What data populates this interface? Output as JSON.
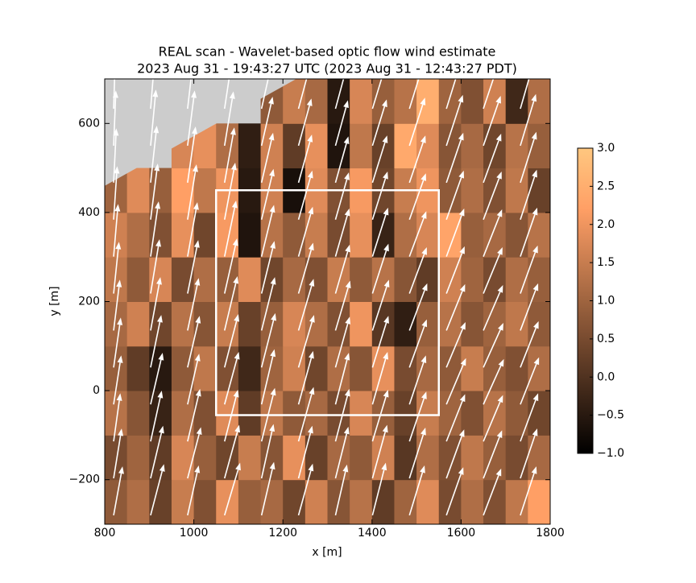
{
  "chart_data": {
    "type": "heatmap",
    "title": "REAL scan - Wavelet-based optic flow wind estimate",
    "subtitle": "2023 Aug 31 - 19:43:27 UTC (2023 Aug 31 - 12:43:27 PDT)",
    "xlabel": "x [m]",
    "ylabel": "y [m]",
    "xlim": [
      800,
      1800
    ],
    "ylim": [
      -300,
      700
    ],
    "xticks": [
      800,
      1000,
      1200,
      1400,
      1600,
      1800
    ],
    "yticks": [
      {
        "value": -200,
        "label": "−200"
      },
      0,
      200,
      400,
      600
    ],
    "clim": [
      -1,
      3
    ],
    "cticks": [
      {
        "value": -1,
        "label": "−1.0"
      },
      {
        "value": -0.5,
        "label": "−0.5"
      },
      {
        "value": 0,
        "label": "0.0"
      },
      0.5,
      {
        "value": 1,
        "label": "1.0"
      },
      1.5,
      {
        "value": 2,
        "label": "2.0"
      },
      2.5,
      {
        "value": 3,
        "label": "3.0"
      }
    ],
    "colormap": "copper",
    "mask_color": "#cccccc",
    "mask_edge": {
      "x": [
        800,
        1230
      ],
      "y": [
        460,
        700
      ]
    },
    "xbins": [
      800,
      850,
      900,
      950,
      1000,
      1050,
      1100,
      1150,
      1200,
      1250,
      1300,
      1350,
      1400,
      1450,
      1500,
      1550,
      1600,
      1650,
      1700,
      1750,
      1800
    ],
    "ybins": [
      -300,
      -200,
      -100,
      0,
      100,
      200,
      300,
      400,
      500,
      600,
      700
    ],
    "z": [
      [
        0.8,
        1.2,
        0.3,
        1.5,
        0.6,
        1.9,
        0.9,
        1.1,
        0.4,
        1.6,
        0.7,
        1.3,
        0.2,
        1.0,
        1.8,
        0.5,
        1.2,
        0.6,
        1.4,
        2.2
      ],
      [
        0.5,
        1.0,
        0.2,
        1.7,
        0.9,
        0.4,
        1.5,
        0.7,
        1.9,
        0.3,
        1.1,
        0.8,
        1.6,
        0.1,
        1.2,
        0.6,
        1.4,
        0.9,
        0.5,
        1.1
      ],
      [
        1.3,
        0.7,
        -0.3,
        1.2,
        0.6,
        1.8,
        0.2,
        1.4,
        0.8,
        1.1,
        0.5,
        1.7,
        0.9,
        0.3,
        1.5,
        1.0,
        0.6,
        1.3,
        0.8,
        0.4
      ],
      [
        0.9,
        0.2,
        -0.5,
        0.8,
        1.4,
        0.6,
        -0.2,
        1.0,
        1.6,
        0.4,
        1.2,
        0.7,
        1.9,
        0.5,
        1.1,
        0.8,
        1.5,
        0.9,
        0.6,
        1.2
      ],
      [
        1.1,
        1.6,
        0.4,
        1.3,
        0.7,
        1.5,
        0.3,
        0.9,
        1.7,
        1.2,
        0.6,
        2.0,
        0.1,
        -0.4,
        0.9,
        1.3,
        0.7,
        1.0,
        1.4,
        0.8
      ],
      [
        1.4,
        0.8,
        1.7,
        0.5,
        1.2,
        0.9,
        1.8,
        0.4,
        1.1,
        0.6,
        1.5,
        0.8,
        1.3,
        0.7,
        0.2,
        1.6,
        1.0,
        0.5,
        1.2,
        0.9
      ],
      [
        1.6,
        1.2,
        0.6,
        1.9,
        0.4,
        2.1,
        -0.6,
        1.3,
        0.8,
        1.5,
        0.5,
        1.9,
        -0.3,
        1.2,
        1.7,
        2.3,
        0.9,
        1.1,
        0.7,
        1.3
      ],
      [
        1.0,
        1.8,
        0.9,
        2.2,
        1.4,
        2.0,
        -0.5,
        1.6,
        -0.7,
        1.8,
        0.6,
        2.1,
        0.4,
        1.5,
        2.0,
        0.8,
        1.2,
        0.6,
        1.4,
        0.3
      ],
      [
        null,
        null,
        null,
        1.7,
        1.9,
        1.2,
        -0.4,
        1.6,
        0.2,
        1.9,
        -0.6,
        1.4,
        0.3,
        2.4,
        1.8,
        0.7,
        1.1,
        0.4,
        1.3,
        0.9
      ],
      [
        null,
        null,
        null,
        null,
        null,
        null,
        null,
        0.8,
        1.5,
        1.1,
        -0.5,
        1.7,
        0.9,
        1.3,
        2.5,
        1.0,
        0.6,
        1.6,
        -0.2,
        1.2
      ]
    ],
    "box": {
      "x": [
        1050,
        1550
      ],
      "y": [
        -55,
        450
      ],
      "color": "#ffffff"
    },
    "quiver": {
      "color": "#ffffff",
      "x": [
        820,
        903,
        986,
        1069,
        1152,
        1235,
        1318,
        1401,
        1484,
        1567,
        1650,
        1733
      ],
      "y": [
        -280,
        -197,
        -114,
        -31,
        52,
        135,
        218,
        301,
        384,
        467,
        550,
        633
      ],
      "u": [
        [
          20,
          30,
          25,
          35,
          28,
          32,
          26,
          30,
          34,
          38,
          40,
          36
        ],
        [
          18,
          28,
          30,
          33,
          27,
          31,
          29,
          33,
          36,
          40,
          42,
          38
        ],
        [
          15,
          25,
          28,
          30,
          30,
          34,
          31,
          35,
          38,
          42,
          44,
          40
        ],
        [
          17,
          27,
          26,
          32,
          29,
          33,
          30,
          34,
          37,
          44,
          46,
          42
        ],
        [
          16,
          24,
          27,
          31,
          31,
          35,
          32,
          36,
          39,
          43,
          45,
          41
        ],
        [
          14,
          22,
          25,
          29,
          30,
          34,
          33,
          37,
          40,
          42,
          44,
          40
        ],
        [
          12,
          20,
          24,
          28,
          29,
          33,
          32,
          36,
          39,
          41,
          43,
          39
        ],
        [
          10,
          18,
          22,
          26,
          28,
          32,
          31,
          35,
          38,
          40,
          42,
          38
        ],
        [
          8,
          16,
          20,
          24,
          27,
          31,
          30,
          34,
          37,
          39,
          41,
          37
        ],
        [
          6,
          14,
          18,
          22,
          26,
          30,
          29,
          33,
          36,
          38,
          40,
          36
        ],
        [
          5,
          12,
          16,
          20,
          25,
          29,
          28,
          32,
          35,
          37,
          39,
          35
        ],
        [
          4,
          10,
          14,
          18,
          24,
          28,
          27,
          31,
          34,
          36,
          38,
          34
        ]
      ],
      "v": [
        [
          110,
          115,
          112,
          118,
          120,
          116,
          114,
          118,
          112,
          108,
          105,
          110
        ],
        [
          112,
          118,
          115,
          120,
          122,
          118,
          116,
          120,
          114,
          110,
          108,
          112
        ],
        [
          108,
          114,
          118,
          116,
          120,
          122,
          118,
          116,
          112,
          106,
          104,
          108
        ],
        [
          110,
          116,
          114,
          118,
          124,
          120,
          116,
          118,
          110,
          104,
          102,
          106
        ],
        [
          112,
          118,
          116,
          120,
          122,
          118,
          114,
          116,
          108,
          102,
          100,
          104
        ],
        [
          114,
          120,
          118,
          122,
          120,
          116,
          112,
          114,
          106,
          104,
          102,
          106
        ],
        [
          116,
          122,
          120,
          124,
          118,
          114,
          110,
          112,
          104,
          106,
          104,
          108
        ],
        [
          118,
          124,
          122,
          126,
          116,
          112,
          108,
          110,
          102,
          108,
          106,
          110
        ],
        [
          120,
          126,
          124,
          128,
          114,
          110,
          106,
          108,
          104,
          110,
          108,
          112
        ],
        [
          122,
          128,
          126,
          124,
          112,
          108,
          104,
          106,
          106,
          112,
          110,
          114
        ],
        [
          124,
          126,
          124,
          122,
          110,
          106,
          102,
          104,
          108,
          114,
          112,
          116
        ],
        [
          126,
          124,
          122,
          120,
          108,
          104,
          100,
          102,
          110,
          116,
          114,
          118
        ]
      ]
    }
  }
}
